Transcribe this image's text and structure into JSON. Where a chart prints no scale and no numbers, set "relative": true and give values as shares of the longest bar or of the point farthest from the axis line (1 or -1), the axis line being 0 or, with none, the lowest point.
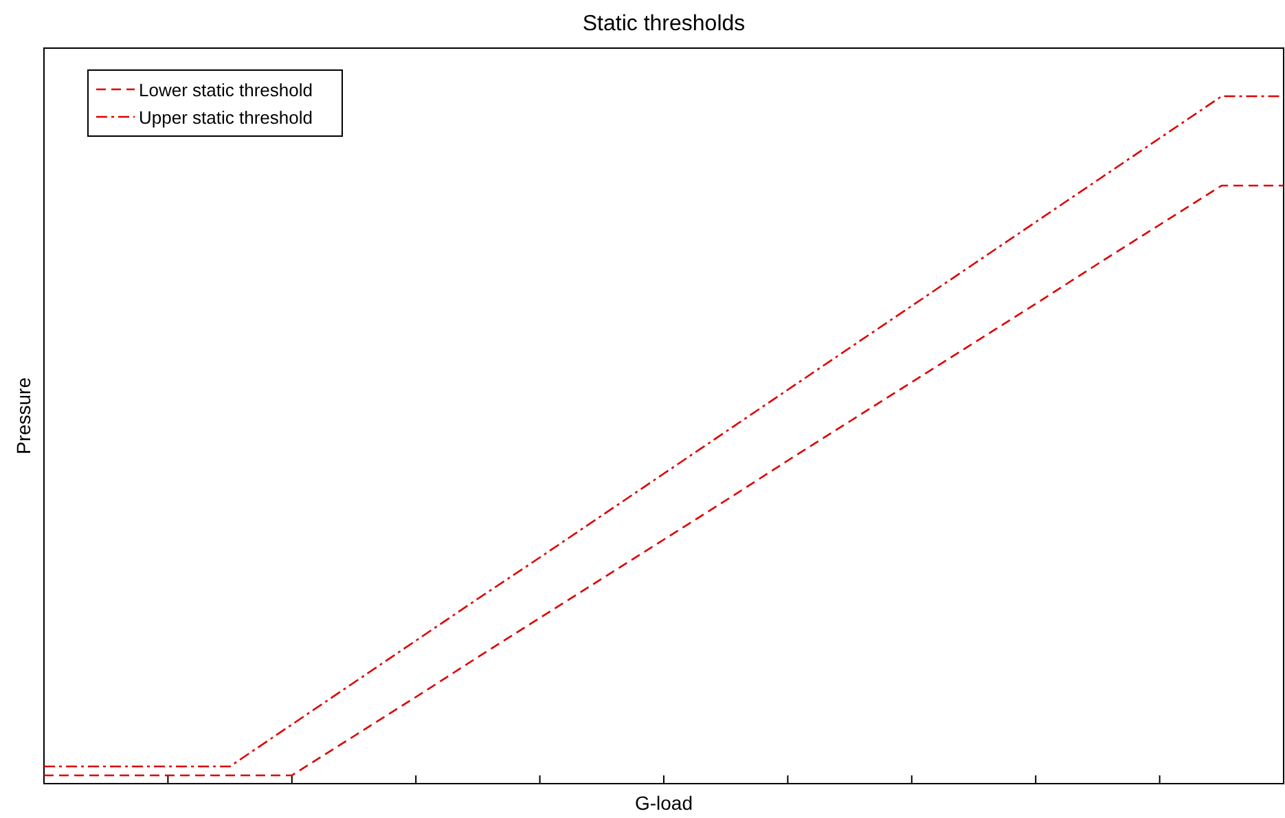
{
  "chart_data": {
    "type": "line",
    "title": "Static thresholds",
    "xlabel": "G-load",
    "ylabel": "Pressure",
    "relative": true,
    "categories": [
      null,
      null,
      null,
      null,
      null,
      null,
      null,
      null,
      null,
      null,
      null,
      null,
      null,
      null,
      null,
      null,
      null,
      null,
      null,
      null,
      null
    ],
    "legend": "top left",
    "marker": "none",
    "series": [
      {
        "name": "Lower static threshold",
        "color": "#dd0000",
        "line_style": "dashed",
        "values": [
          0.012,
          0.012,
          0.012,
          0.012,
          0.012,
          0.069,
          0.126,
          0.184,
          0.241,
          0.298,
          0.355,
          0.412,
          0.47,
          0.527,
          0.584,
          0.641,
          0.698,
          0.756,
          0.813,
          0.87,
          0.87
        ]
      },
      {
        "name": "Upper static threshold",
        "color": "#dd0000",
        "line_style": "dashdot",
        "values": [
          0.025,
          0.025,
          0.025,
          0.025,
          0.086,
          0.147,
          0.208,
          0.269,
          0.329,
          0.39,
          0.451,
          0.512,
          0.573,
          0.634,
          0.695,
          0.756,
          0.817,
          0.878,
          0.939,
          1,
          1
        ]
      }
    ]
  }
}
